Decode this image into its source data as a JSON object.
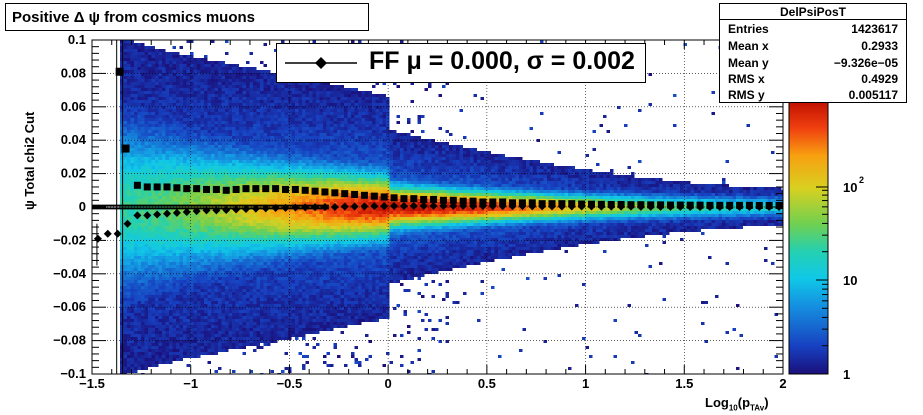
{
  "title": "Positive Δ ψ from cosmics muons",
  "stats": {
    "name": "DelPsiPosT",
    "rows": [
      {
        "label": "Entries",
        "value": "1423617"
      },
      {
        "label": "Mean x",
        "value": "0.2933"
      },
      {
        "label": "Mean y",
        "value": "−9.326e−05"
      },
      {
        "label": "RMS x",
        "value": "0.4929"
      },
      {
        "label": "RMS y",
        "value": "0.005117"
      }
    ]
  },
  "legend": {
    "text": "FF μ =  0.000, σ =   0.002"
  },
  "colors": {
    "profile": "#000000"
  },
  "chart_data": {
    "type": "heatmap",
    "title": "Positive Δ ψ from cosmics muons",
    "xlabel": "Log10(pTAv)",
    "ylabel": "ψ  Total chi2 Cut",
    "xlim": [
      -1.5,
      2
    ],
    "ylim": [
      -0.1,
      0.1
    ],
    "x_ticks": [
      "−1.5",
      "−1",
      "−0.5",
      "0",
      "0.5",
      "1",
      "1.5",
      "2"
    ],
    "y_ticks": [
      "−0.1",
      "−0.08",
      "−0.06",
      "−0.04",
      "−0.02",
      "0",
      "0.02",
      "0.04",
      "0.06",
      "0.08",
      "0.1"
    ],
    "z_scale": "log",
    "z_ticks": [
      "1",
      "10",
      "10^2"
    ],
    "grid": true,
    "series": [
      {
        "marker": "square",
        "x": [
          -1.36,
          -1.33,
          -1.27,
          -1.22,
          -1.17,
          -1.12,
          -1.07,
          -1.02,
          -0.97,
          -0.92,
          -0.87,
          -0.82,
          -0.77,
          -0.72,
          -0.67,
          -0.62,
          -0.57,
          -0.52,
          -0.47,
          -0.42,
          -0.37,
          -0.32,
          -0.27,
          -0.22,
          -0.17,
          -0.12,
          -0.07,
          -0.02,
          0.03,
          0.08,
          0.13,
          0.18,
          0.23,
          0.28,
          0.33,
          0.38,
          0.43,
          0.48,
          0.53,
          0.58,
          0.63,
          0.68,
          0.73,
          0.78,
          0.83,
          0.88,
          0.93,
          0.98,
          1.03,
          1.08,
          1.13,
          1.18,
          1.23,
          1.28,
          1.33,
          1.38,
          1.43,
          1.48,
          1.53,
          1.58,
          1.63,
          1.68,
          1.73,
          1.78,
          1.83,
          1.88,
          1.93,
          1.98
        ],
        "y": [
          0.081,
          0.035,
          0.013,
          0.012,
          0.012,
          0.012,
          0.0115,
          0.011,
          0.011,
          0.0105,
          0.0105,
          0.01,
          0.0105,
          0.011,
          0.011,
          0.011,
          0.011,
          0.0105,
          0.0105,
          0.01,
          0.0095,
          0.009,
          0.0085,
          0.008,
          0.0075,
          0.007,
          0.0065,
          0.006,
          0.0055,
          0.005,
          0.005,
          0.0045,
          0.0045,
          0.004,
          0.004,
          0.0035,
          0.0035,
          0.003,
          0.003,
          0.003,
          0.0025,
          0.0025,
          0.0025,
          0.002,
          0.002,
          0.002,
          0.002,
          0.0018,
          0.0017,
          0.0016,
          0.0015,
          0.0015,
          0.0014,
          0.0014,
          0.0013,
          0.0013,
          0.0012,
          0.0012,
          0.0011,
          0.0011,
          0.001,
          0.001,
          0.001,
          0.001,
          0.001,
          0.0009,
          0.0009,
          0.0009
        ]
      },
      {
        "marker": "diamond",
        "x": [
          -1.47,
          -1.42,
          -1.37,
          -1.32,
          -1.27,
          -1.22,
          -1.17,
          -1.12,
          -1.07,
          -1.02,
          -0.97,
          -0.92,
          -0.87,
          -0.82,
          -0.77,
          -0.72,
          -0.67,
          -0.62,
          -0.57,
          -0.52,
          -0.47,
          -0.42,
          -0.37,
          -0.32,
          -0.27,
          -0.22,
          -0.17,
          -0.12,
          -0.07,
          -0.02,
          0.03,
          0.08,
          0.13,
          0.18,
          0.23,
          0.28,
          0.33,
          0.38,
          0.43,
          0.48,
          0.53,
          0.58,
          0.63,
          0.68,
          0.73,
          0.78,
          0.83,
          0.88,
          0.93,
          0.98,
          1.03,
          1.08,
          1.13,
          1.18,
          1.23,
          1.28,
          1.33,
          1.38,
          1.43,
          1.48,
          1.53,
          1.58,
          1.63,
          1.68,
          1.73,
          1.78,
          1.83,
          1.88,
          1.93,
          1.98
        ],
        "y": [
          -0.019,
          -0.016,
          -0.016,
          -0.01,
          -0.005,
          -0.005,
          -0.0045,
          -0.004,
          -0.0035,
          -0.003,
          -0.0025,
          -0.002,
          -0.002,
          -0.0018,
          -0.0015,
          -0.0012,
          -0.001,
          -0.0008,
          -0.0006,
          -0.0005,
          -0.0003,
          -0.0002,
          -0.0001,
          0.0,
          0.0,
          0.0002,
          0.0003,
          0.0004,
          0.0005,
          0.0005,
          0.0006,
          0.0006,
          0.0007,
          0.0007,
          0.0007,
          0.0007,
          0.0007,
          0.0007,
          0.0006,
          0.0006,
          0.0006,
          0.0005,
          0.0005,
          0.0005,
          0.0004,
          0.0004,
          0.0004,
          0.0003,
          0.0003,
          0.0003,
          0.0003,
          0.0002,
          0.0002,
          0.0002,
          0.0002,
          0.0001,
          0.0001,
          0.0001,
          0.0001,
          0.0001,
          0.0,
          0.0,
          0.0,
          0.0,
          0.0,
          0.0,
          0.0,
          0.0,
          0.0,
          0.0
        ]
      }
    ]
  }
}
